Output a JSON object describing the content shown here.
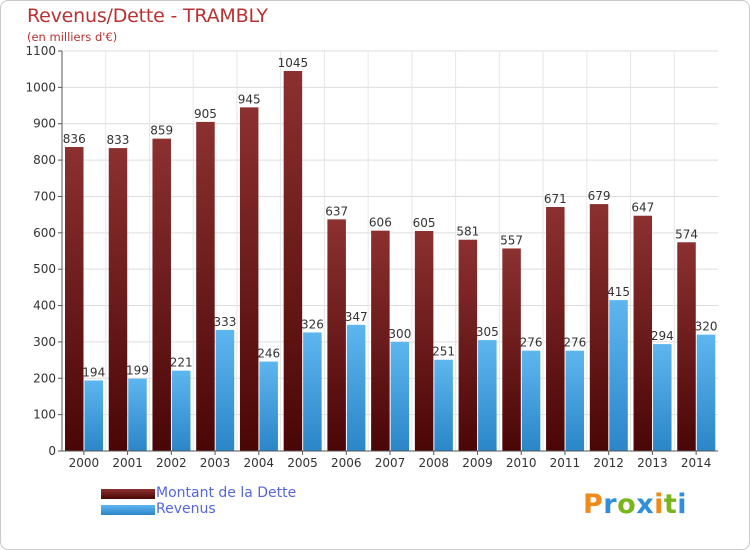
{
  "title": "Revenus/Dette - TRAMBLY",
  "subtitle": "(en milliers d'€)",
  "chart_data": {
    "type": "bar",
    "title": "Revenus/Dette - TRAMBLY",
    "subtitle": "(en milliers d'€)",
    "xlabel": "",
    "ylabel": "",
    "ylim": [
      0,
      1100
    ],
    "yticks": [
      0,
      100,
      200,
      300,
      400,
      500,
      600,
      700,
      800,
      900,
      1000,
      1100
    ],
    "grid": true,
    "legend_position": "bottom-left",
    "categories": [
      "2000",
      "2001",
      "2002",
      "2003",
      "2004",
      "2005",
      "2006",
      "2007",
      "2008",
      "2009",
      "2010",
      "2011",
      "2012",
      "2013",
      "2014"
    ],
    "series": [
      {
        "name": "Montant de la Dette",
        "color": "#7a1f1f",
        "values": [
          836,
          833,
          859,
          905,
          945,
          1045,
          637,
          606,
          605,
          581,
          557,
          671,
          679,
          647,
          574
        ]
      },
      {
        "name": "Revenus",
        "color": "#3d9ee0",
        "values": [
          194,
          199,
          221,
          333,
          246,
          326,
          347,
          300,
          251,
          305,
          276,
          276,
          415,
          294,
          320
        ]
      }
    ]
  },
  "legend": [
    {
      "label": "Montant de la Dette",
      "color": "#7a1f1f"
    },
    {
      "label": "Revenus",
      "color": "#3d9ee0"
    }
  ],
  "logo": {
    "letters": [
      "P",
      "r",
      "o",
      "x",
      "i",
      "t",
      "i"
    ],
    "colors": [
      "#ef8a1b",
      "#2f8fd8",
      "#7ab51d",
      "#2f8fd8",
      "#ef8a1b",
      "#7ab51d",
      "#2f8fd8"
    ]
  }
}
